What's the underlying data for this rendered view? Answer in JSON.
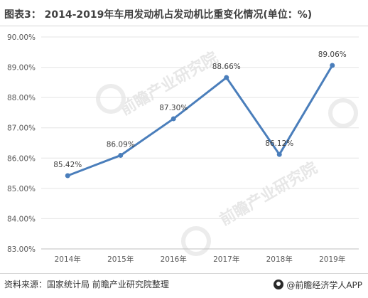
{
  "title": "图表3： 2014-2019年车用发动机占发动机比重变化情况(单位：%)",
  "source": "资料来源：国家统计局 前瞻产业研究院整理",
  "brand": "@前瞻经济学人APP",
  "watermark": "前瞻产业研究院",
  "colors": {
    "line": "#4a7ebb",
    "grid": "#e4e4e4",
    "axis": "#bfbfbf",
    "text": "#595959"
  },
  "chart_data": {
    "type": "line",
    "categories": [
      "2014年",
      "2015年",
      "2016年",
      "2017年",
      "2018年",
      "2019年"
    ],
    "series": [
      {
        "values": [
          85.42,
          86.09,
          87.3,
          88.66,
          86.12,
          89.06
        ]
      }
    ],
    "data_labels": [
      "85.42%",
      "86.09%",
      "87.30%",
      "88.66%",
      "86.12%",
      "89.06%"
    ],
    "y_ticks": [
      "83.00%",
      "84.00%",
      "85.00%",
      "86.00%",
      "87.00%",
      "88.00%",
      "89.00%",
      "90.00%"
    ],
    "ylim": [
      83,
      90
    ],
    "grid": true,
    "legend": false
  }
}
